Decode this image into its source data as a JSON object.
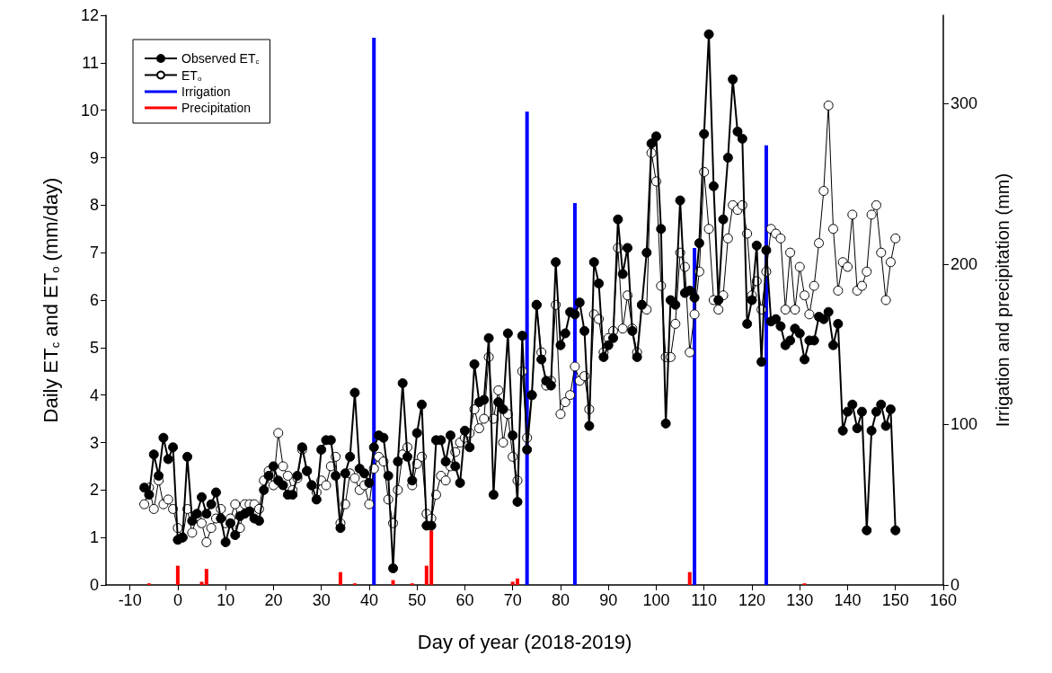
{
  "chart_data": {
    "type": "line",
    "xlabel": "Day of year (2018-2019)",
    "ylabel": "Daily ET$_{c}$ and ET$_{o}$ (mm/day)",
    "y2label": "Irrigation and precipitation (mm)",
    "xlim": [
      -15,
      160
    ],
    "xticks": [
      -10,
      0,
      10,
      20,
      30,
      40,
      50,
      60,
      70,
      80,
      90,
      100,
      110,
      120,
      130,
      140,
      150,
      160
    ],
    "ylim": [
      0,
      12
    ],
    "yticks": [
      0,
      1,
      2,
      3,
      4,
      5,
      6,
      7,
      8,
      9,
      10,
      11,
      12
    ],
    "y2lim": [
      0,
      355
    ],
    "y2ticks": [
      0,
      100,
      200,
      300
    ],
    "grid": false,
    "legend": "top left",
    "marker": "circle",
    "x": [
      -7,
      -6,
      -5,
      -4,
      -3,
      -2,
      -1,
      0,
      1,
      2,
      3,
      4,
      5,
      6,
      7,
      8,
      9,
      10,
      11,
      12,
      13,
      14,
      15,
      16,
      17,
      18,
      19,
      20,
      21,
      22,
      23,
      24,
      25,
      26,
      27,
      28,
      29,
      30,
      31,
      32,
      33,
      34,
      35,
      36,
      37,
      38,
      39,
      40,
      41,
      42,
      43,
      44,
      45,
      46,
      47,
      48,
      49,
      50,
      51,
      52,
      53,
      54,
      55,
      56,
      57,
      58,
      59,
      60,
      61,
      62,
      63,
      64,
      65,
      66,
      67,
      68,
      69,
      70,
      71,
      72,
      73,
      74,
      75,
      76,
      77,
      78,
      79,
      80,
      81,
      82,
      83,
      84,
      85,
      86,
      87,
      88,
      89,
      90,
      91,
      92,
      93,
      94,
      95,
      96,
      97,
      98,
      99,
      100,
      101,
      102,
      103,
      104,
      105,
      106,
      107,
      108,
      109,
      110,
      111,
      112,
      113,
      114,
      115,
      116,
      117,
      118,
      119,
      120,
      121,
      122,
      123,
      124,
      125,
      126,
      127,
      128,
      129,
      130,
      131,
      132,
      133,
      134,
      135,
      136,
      137,
      138,
      139,
      140,
      141,
      142,
      143,
      144,
      145,
      146,
      147,
      148,
      149,
      150
    ],
    "series": [
      {
        "name": "Observed ET$_{c}$",
        "color": "#000000",
        "values": [
          2.05,
          1.9,
          2.75,
          2.3,
          3.1,
          2.65,
          2.9,
          0.95,
          1.0,
          2.7,
          1.35,
          1.5,
          1.85,
          1.5,
          1.7,
          1.95,
          1.4,
          0.9,
          1.3,
          1.05,
          1.45,
          1.5,
          1.55,
          1.4,
          1.35,
          2.0,
          2.3,
          2.5,
          2.2,
          2.1,
          1.9,
          1.9,
          2.3,
          2.9,
          2.4,
          2.1,
          1.8,
          2.85,
          3.05,
          3.05,
          2.3,
          1.2,
          2.35,
          2.7,
          4.05,
          2.45,
          2.35,
          2.15,
          2.9,
          3.15,
          3.1,
          2.3,
          0.35,
          2.6,
          4.25,
          2.7,
          2.2,
          3.2,
          3.8,
          1.25,
          1.25,
          3.05,
          3.05,
          2.6,
          3.15,
          2.5,
          2.15,
          3.25,
          2.9,
          4.65,
          3.85,
          3.9,
          5.2,
          1.9,
          3.85,
          3.7,
          5.3,
          3.15,
          1.75,
          5.25,
          2.85,
          4.0,
          5.9,
          4.75,
          4.3,
          4.2,
          6.8,
          5.05,
          5.3,
          5.75,
          5.7,
          5.95,
          5.35,
          3.35,
          6.8,
          6.35,
          4.8,
          5.05,
          5.2,
          7.7,
          6.55,
          7.1,
          5.35,
          4.8,
          5.9,
          7.0,
          9.3,
          9.45,
          7.5,
          3.4,
          6.0,
          5.9,
          8.1,
          6.15,
          6.2,
          6.05,
          7.2,
          9.5,
          11.6,
          8.4,
          6.0,
          7.7,
          9.0,
          10.65,
          9.55,
          9.4,
          5.5,
          6.0,
          7.15,
          4.7,
          7.05,
          5.55,
          5.6,
          5.45,
          5.05,
          5.15,
          5.4,
          5.3,
          4.75,
          5.15,
          5.15,
          5.65,
          5.6,
          5.75,
          5.05,
          5.5,
          3.25,
          3.65,
          3.8,
          3.3,
          3.65,
          1.15,
          3.25,
          3.65,
          3.8,
          3.35,
          3.7,
          1.15
        ]
      },
      {
        "name": "ET$_{o}$",
        "color": "#ffffff",
        "values": [
          1.7,
          2.05,
          1.6,
          2.2,
          1.7,
          1.8,
          1.6,
          1.2,
          1.0,
          1.6,
          1.1,
          1.45,
          1.3,
          0.9,
          1.2,
          1.4,
          1.6,
          1.3,
          1.4,
          1.7,
          1.2,
          1.7,
          1.7,
          1.7,
          1.6,
          2.2,
          2.4,
          2.1,
          3.2,
          2.5,
          2.3,
          2.0,
          2.25,
          2.85,
          2.4,
          2.1,
          1.95,
          2.2,
          2.1,
          2.5,
          2.7,
          1.3,
          1.7,
          2.35,
          2.25,
          2.0,
          2.1,
          1.7,
          2.45,
          2.7,
          2.6,
          1.8,
          1.3,
          2.0,
          2.75,
          2.9,
          2.1,
          2.55,
          2.7,
          1.5,
          1.4,
          1.9,
          2.3,
          2.2,
          2.5,
          2.8,
          3.0,
          3.1,
          3.2,
          3.7,
          3.3,
          3.5,
          4.8,
          3.5,
          4.1,
          3.0,
          3.6,
          2.7,
          2.2,
          4.5,
          3.1,
          4.0,
          5.9,
          4.9,
          4.2,
          4.3,
          5.9,
          3.6,
          3.85,
          4.0,
          4.6,
          4.3,
          4.4,
          3.7,
          5.7,
          5.6,
          4.9,
          5.2,
          5.35,
          7.1,
          5.4,
          6.1,
          5.4,
          4.9,
          5.9,
          5.8,
          9.1,
          8.5,
          6.3,
          4.8,
          4.8,
          5.5,
          7.0,
          6.7,
          4.9,
          5.7,
          6.6,
          8.7,
          7.5,
          6.0,
          5.8,
          6.1,
          7.3,
          8.0,
          7.9,
          8.0,
          7.4,
          6.1,
          6.4,
          5.8,
          6.6,
          7.5,
          7.4,
          7.3,
          5.8,
          7.0,
          5.8,
          6.7,
          6.1,
          5.7,
          6.3,
          7.2,
          8.3,
          10.1,
          7.5,
          6.2,
          6.8,
          6.7,
          7.8,
          6.2,
          6.3,
          6.6,
          7.8,
          8.0,
          7.0,
          6.0,
          6.8,
          7.3
        ]
      },
      {
        "name": "Irrigation",
        "type": "bar",
        "axis": "y2",
        "color": "#0000ff",
        "x": [
          41,
          73,
          83,
          108,
          123
        ],
        "values": [
          341,
          295,
          238,
          210,
          274
        ]
      },
      {
        "name": "Precipitation",
        "type": "bar",
        "axis": "y2",
        "color": "#ff0000",
        "x": [
          -6,
          0,
          5,
          6,
          34,
          37,
          45,
          49,
          52,
          53,
          70,
          71,
          107,
          131
        ],
        "values": [
          1,
          12,
          2,
          10,
          8,
          1,
          3,
          1,
          12,
          34,
          2,
          4,
          8,
          1
        ]
      }
    ]
  }
}
